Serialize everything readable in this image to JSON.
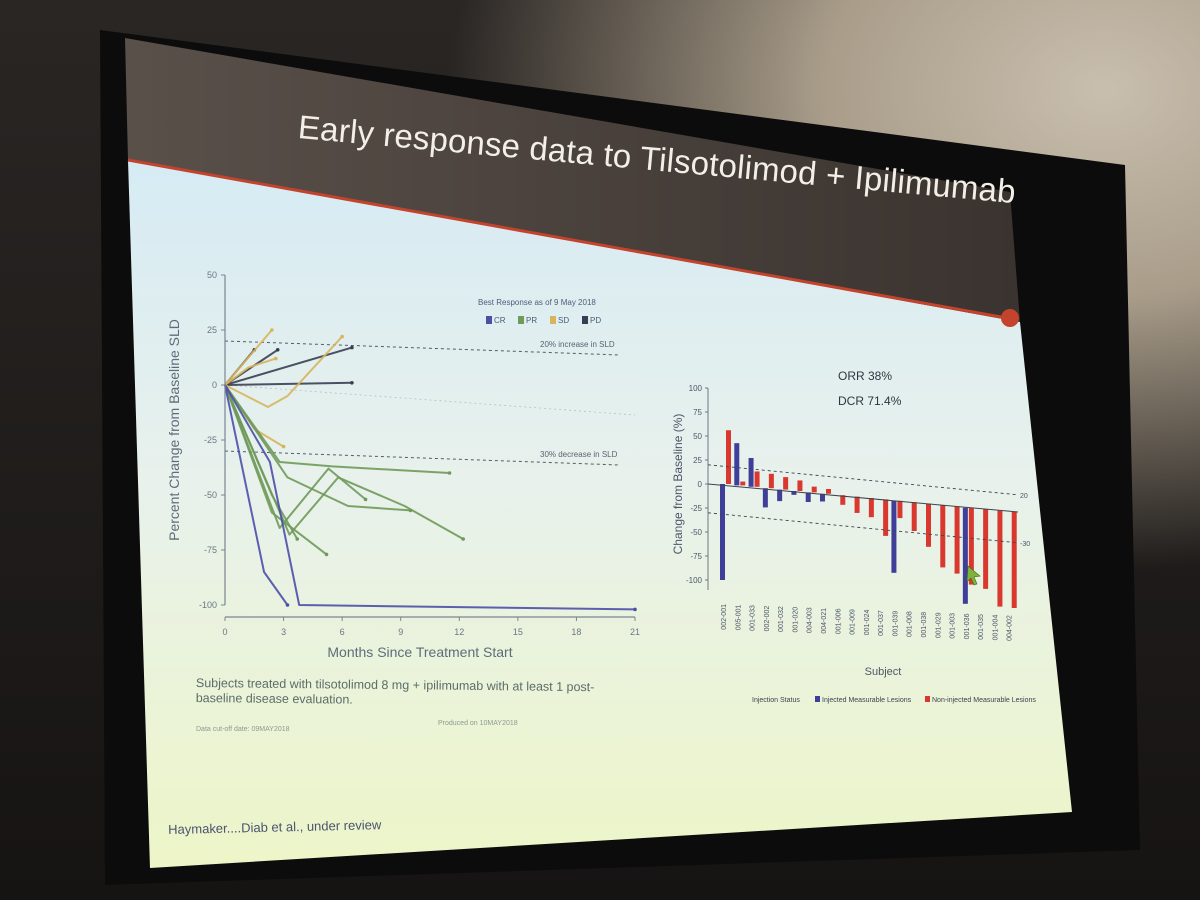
{
  "slide": {
    "title": "Early response data to Tilsotolimod + Ipilimumab",
    "citation": "Haymaker....Diab et al., under review",
    "subjects_note": "Subjects treated with tilsotolimod 8 mg + ipilimumab with at least 1 post-baseline disease evaluation.",
    "cutoff_note": "Data cut-off date: 09MAY2018",
    "produced_note": "Produced on 10MAY2018",
    "colors": {
      "title_bar": "#4a403a",
      "accent": "#c4432c",
      "slide_bg_top": "#d9ecf3",
      "slide_bg_bottom": "#e9f3cf"
    }
  },
  "chart_data": [
    {
      "type": "line",
      "title": "",
      "xlabel": "Months Since Treatment Start",
      "ylabel": "Percent Change from Baseline SLD",
      "xlim": [
        0,
        21
      ],
      "ylim": [
        -100,
        50
      ],
      "x_ticks": [
        "0",
        "3",
        "6",
        "9",
        "12",
        "15",
        "18",
        "21"
      ],
      "y_ticks": [
        "50",
        "25",
        "0",
        "-25",
        "-50",
        "-75",
        "-100"
      ],
      "legend_title": "Best Response as of 9 May 2018",
      "legend": [
        {
          "name": "CR",
          "color": "#4b4fa8"
        },
        {
          "name": "PR",
          "color": "#6f9a5a"
        },
        {
          "name": "SD",
          "color": "#d8b45c"
        },
        {
          "name": "PD",
          "color": "#3a3e52"
        }
      ],
      "reference_lines": [
        {
          "label": "20% increase in SLD",
          "y": 20
        },
        {
          "label": "30% decrease in SLD",
          "y": -30
        }
      ],
      "series": [
        {
          "group": "PD",
          "color": "#3a3e52",
          "x": [
            0,
            1.5
          ],
          "y": [
            0,
            16
          ]
        },
        {
          "group": "PD",
          "color": "#3a3e52",
          "x": [
            0,
            2.7
          ],
          "y": [
            0,
            16
          ]
        },
        {
          "group": "PD",
          "color": "#3a3e52",
          "x": [
            0,
            6.5
          ],
          "y": [
            0,
            17
          ]
        },
        {
          "group": "PD",
          "color": "#3a3e52",
          "x": [
            0,
            6.5
          ],
          "y": [
            0,
            1
          ]
        },
        {
          "group": "SD",
          "color": "#d8b45c",
          "x": [
            0,
            2.4
          ],
          "y": [
            0,
            25
          ]
        },
        {
          "group": "SD",
          "color": "#d8b45c",
          "x": [
            0,
            1.2,
            2.6
          ],
          "y": [
            0,
            8,
            12
          ]
        },
        {
          "group": "SD",
          "color": "#d8b45c",
          "x": [
            0,
            2.2,
            3.2,
            6
          ],
          "y": [
            0,
            -10,
            -5,
            22
          ]
        },
        {
          "group": "SD",
          "color": "#d8b45c",
          "x": [
            0,
            1.5,
            3
          ],
          "y": [
            0,
            -20,
            -28
          ]
        },
        {
          "group": "PR",
          "color": "#6f9a5a",
          "x": [
            0,
            2.8,
            5.5,
            11.5
          ],
          "y": [
            0,
            -35,
            -37,
            -40
          ]
        },
        {
          "group": "PR",
          "color": "#6f9a5a",
          "x": [
            0,
            3.2,
            6.3,
            9.5
          ],
          "y": [
            0,
            -42,
            -55,
            -57
          ]
        },
        {
          "group": "PR",
          "color": "#6f9a5a",
          "x": [
            0,
            2.4,
            5.2
          ],
          "y": [
            0,
            -58,
            -77
          ]
        },
        {
          "group": "PR",
          "color": "#6f9a5a",
          "x": [
            0,
            2.8,
            5.3,
            7.2
          ],
          "y": [
            0,
            -65,
            -38,
            -52
          ]
        },
        {
          "group": "PR",
          "color": "#6f9a5a",
          "x": [
            0,
            2.4,
            3.7
          ],
          "y": [
            0,
            -50,
            -70
          ]
        },
        {
          "group": "PR",
          "color": "#6f9a5a",
          "x": [
            0,
            3.3,
            5.8,
            9.2,
            12.2
          ],
          "y": [
            0,
            -68,
            -42,
            -55,
            -70
          ]
        },
        {
          "group": "CR",
          "color": "#4b4fa8",
          "x": [
            0,
            2.0,
            3.2
          ],
          "y": [
            0,
            -85,
            -100
          ]
        },
        {
          "group": "CR",
          "color": "#4b4fa8",
          "x": [
            0,
            2.3,
            3.8,
            21
          ],
          "y": [
            0,
            -35,
            -100,
            -102
          ]
        }
      ]
    },
    {
      "type": "bar",
      "title": "",
      "annotations": [
        "ORR 38%",
        "DCR 71.4%"
      ],
      "xlabel": "Subject",
      "ylabel": "Change from Baseline (%)",
      "ylim": [
        -100,
        100
      ],
      "y_ticks": [
        "100",
        "75",
        "50",
        "25",
        "0",
        "-25",
        "-50",
        "-75",
        "-100"
      ],
      "reference_lines": [
        {
          "label": "20",
          "y": 20
        },
        {
          "label": "-30",
          "y": -30
        }
      ],
      "legend_title": "Injection Status",
      "categories": [
        "002-001",
        "005-001",
        "001-033",
        "002-002",
        "001-032",
        "001-020",
        "004-003",
        "004-021",
        "001-006",
        "001-009",
        "001-024",
        "001-037",
        "001-039",
        "001-008",
        "001-038",
        "001-029",
        "001-003",
        "001-036",
        "001-035",
        "001-004",
        "004-002"
      ],
      "series": [
        {
          "name": "Injected Measurable Lesions",
          "color": "#3f3f9a",
          "values": [
            -100,
            44,
            30,
            -20,
            -12,
            -4,
            -10,
            -8,
            0,
            0,
            0,
            0,
            -75,
            0,
            0,
            0,
            0,
            -100,
            0,
            0,
            0
          ]
        },
        {
          "name": "Non-injected Measurable Lesions",
          "color": "#d9382f",
          "values": [
            56,
            4,
            16,
            15,
            13,
            11,
            6,
            5,
            -10,
            -17,
            -20,
            -38,
            -18,
            -30,
            -45,
            -65,
            -70,
            -80,
            -83,
            -100,
            -100
          ]
        }
      ]
    }
  ]
}
